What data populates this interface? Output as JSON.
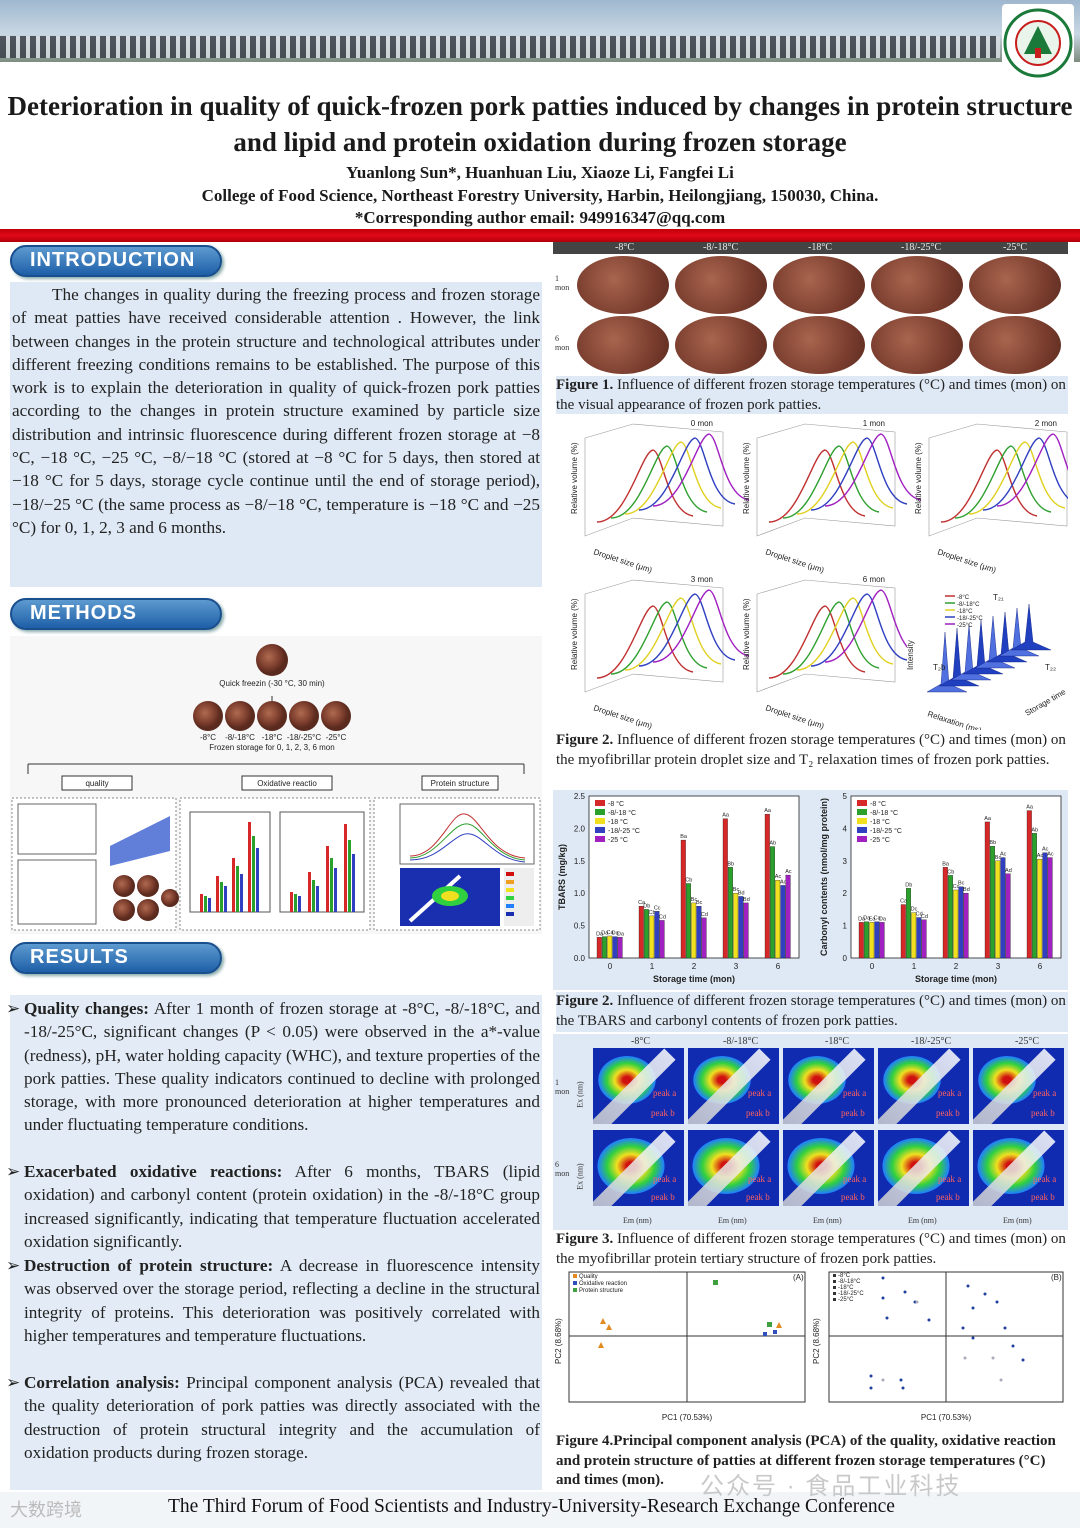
{
  "header": {
    "title": "Deterioration in quality of quick-frozen pork patties induced by changes in protein structure and lipid and protein oxidation during frozen storage",
    "authors": "Yuanlong Sun*, Huanhuan Liu, Xiaoze Li, Fangfei Li",
    "affiliation": "College of Food Science, Northeast Forestry University, Harbin, Heilongjiang, 150030, China.",
    "email": "*Corresponding author email: 949916347@qq.com",
    "logo_text": "NORTHEAST FORESTRY UNIVERSITY"
  },
  "sections": {
    "introduction": "INTRODUCTION",
    "methods": "METHODS",
    "results": "RESULTS"
  },
  "introduction": "The changes in quality during the freezing process and frozen storage of meat patties have received considerable attention . However, the link between changes in the protein structure and technological attributes under different freezing conditions remains to be established. The purpose of this work is to explain the deterioration in quality of quick-frozen pork patties according to the changes in protein structure examined by particle size distribution and intrinsic fluorescence during different frozen storage at −8 °C, −18 °C, −25 °C, −8/−18 °C (stored at −8 °C for 5 days, then stored at −18 °C for 5 days, storage cycle continue until the end of storage period), −18/−25 °C (the same process as −8/−18 °C, temperature is −18 °C and −25 °C) for 0, 1, 2, 3 and 6 months.",
  "methods_fig": {
    "quick_freezing": "Quick freezin (-30 °C, 30 min)",
    "temps": [
      "-8°C",
      "-8/-18°C",
      "-18°C",
      "-18/-25°C",
      "-25°C"
    ],
    "storage": "Frozen storage for 0, 1, 2, 3, 6 mon",
    "boxes": [
      "quality",
      "Oxidative reactio",
      "Protein structure"
    ]
  },
  "results": [
    {
      "head": "Quality changes:",
      "text": " After 1 month of frozen storage at -8°C, -8/-18°C, and -18/-25°C, significant changes (P < 0.05) were observed in the a*-value (redness), pH, water holding capacity (WHC), and texture properties of the pork patties. These quality indicators continued to decline with prolonged storage, with more pronounced deterioration at higher temperatures and under fluctuating temperature conditions."
    },
    {
      "head": "Exacerbated oxidative reactions:",
      "text": " After 6 months, TBARS (lipid oxidation) and carbonyl content (protein oxidation) in the -8/-18°C group increased significantly, indicating that temperature fluctuation accelerated oxidation significantly."
    },
    {
      "head": "Destruction of protein structure:",
      "text": " A decrease in fluorescence intensity was observed over the storage period, reflecting a decline in the structural integrity of proteins. This deterioration was positively correlated with higher temperatures and temperature fluctuations."
    },
    {
      "head": "Correlation analysis:",
      "text": " Principal component analysis (PCA) revealed that the quality deterioration of pork patties was directly associated with the destruction of protein structural integrity and the accumulation of oxidation products during frozen storage."
    }
  ],
  "fig1": {
    "cols": [
      "-8°C",
      "-8/-18°C",
      "-18°C",
      "-18/-25°C",
      "-25°C"
    ],
    "rows": [
      "1 mon",
      "6 mon"
    ],
    "caption_head": "Figure 1.",
    "caption": " Influence of different frozen storage temperatures (°C) and times (mon) on the visual appearance of frozen pork patties."
  },
  "fig2a": {
    "panels": [
      "0 mon",
      "1 mon",
      "2 mon",
      "3 mon",
      "6 mon"
    ],
    "ylabel": "Relative volume (%)",
    "xlabel": "Droplet size (μm)",
    "relax_x": "Relaxation (ms)",
    "relax_y": "Intensity",
    "relax_z": "Storage time",
    "legend": [
      "-8°C",
      "-8/-18°C",
      "-18°C",
      "-18/-25°C",
      "-25°C"
    ],
    "t_labels": [
      "T₂₁",
      "T₂b",
      "T₂₂"
    ],
    "caption_head": "Figure 2.",
    "caption": " Influence of different frozen storage temperatures (°C) and times (mon) on the myofibrillar protein droplet size and T₂ relaxation times of frozen pork patties."
  },
  "chart_data": [
    {
      "type": "bar",
      "title": "",
      "xlabel": "Storage time (mon)",
      "ylabel": "TBARS (mg/kg)",
      "categories": [
        "0",
        "1",
        "2",
        "3",
        "6"
      ],
      "ylim": [
        0,
        2.5
      ],
      "yticks": [
        "0.0",
        "0.5",
        "1.0",
        "1.5",
        "2.0",
        "2.5"
      ],
      "series": [
        {
          "name": "-8 °C",
          "color": "#d62828",
          "values": [
            0.32,
            0.8,
            1.82,
            2.15,
            2.22
          ]
        },
        {
          "name": "-8/-18 °C",
          "color": "#2ca02c",
          "values": [
            0.33,
            0.75,
            1.15,
            1.4,
            1.72
          ]
        },
        {
          "name": "-18 °C",
          "color": "#f0e020",
          "values": [
            0.34,
            0.65,
            0.85,
            1.0,
            1.2
          ]
        },
        {
          "name": "-18/-25 °C",
          "color": "#3040c0",
          "values": [
            0.33,
            0.72,
            0.8,
            0.95,
            1.12
          ]
        },
        {
          "name": "-25 °C",
          "color": "#a020c0",
          "values": [
            0.32,
            0.58,
            0.62,
            0.85,
            1.28
          ]
        }
      ],
      "labels": [
        [
          "Da",
          "Ca",
          "Ba",
          "Aa",
          "Aa"
        ],
        [
          "Da",
          "Db",
          "Cb",
          "Bb",
          "Ab"
        ],
        [
          "Ca",
          "Cb",
          "Bc",
          "Bc",
          "Ac"
        ],
        [
          "Da",
          "Cc",
          "Bc",
          "Bd",
          "Ac"
        ],
        [
          "Da",
          "Cd",
          "Cd",
          "Bd",
          "Ac"
        ]
      ],
      "legend_position": "top-left"
    },
    {
      "type": "bar",
      "title": "",
      "xlabel": "Storage time (mon)",
      "ylabel": "Carbonyl contents (nmol/mg protein)",
      "categories": [
        "0",
        "1",
        "2",
        "3",
        "6"
      ],
      "ylim": [
        0,
        5
      ],
      "yticks": [
        "0",
        "1",
        "2",
        "3",
        "4",
        "5"
      ],
      "series": [
        {
          "name": "-8 °C",
          "color": "#d62828",
          "values": [
            1.1,
            1.65,
            2.8,
            4.2,
            4.55
          ]
        },
        {
          "name": "-8/-18 °C",
          "color": "#2ca02c",
          "values": [
            1.12,
            2.15,
            2.55,
            3.45,
            3.85
          ]
        },
        {
          "name": "-18 °C",
          "color": "#f0e020",
          "values": [
            1.1,
            1.4,
            2.1,
            3.0,
            3.05
          ]
        },
        {
          "name": "-18/-25 °C",
          "color": "#3040c0",
          "values": [
            1.12,
            1.25,
            2.2,
            3.1,
            3.25
          ]
        },
        {
          "name": "-25 °C",
          "color": "#a020c0",
          "values": [
            1.1,
            1.18,
            2.0,
            2.6,
            3.1
          ]
        }
      ],
      "labels": [
        [
          "Da",
          "Ca",
          "Ba",
          "Aa",
          "Aa"
        ],
        [
          "Da",
          "Db",
          "Cb",
          "Bb",
          "Ab"
        ],
        [
          "Ea",
          "Dc",
          "Cc",
          "Bc",
          "Ac"
        ],
        [
          "Ca",
          "Cd",
          "Bc",
          "Ac",
          "Ac"
        ],
        [
          "Da",
          "Cd",
          "Bd",
          "Ad",
          "Ac"
        ]
      ],
      "legend_position": "top-left"
    }
  ],
  "fig2b": {
    "caption_head": "Figure 2.",
    "caption": " Influence of different frozen storage temperatures (°C) and times (mon) on the TBARS and carbonyl contents of frozen pork patties."
  },
  "fig3": {
    "cols": [
      "-8°C",
      "-8/-18°C",
      "-18°C",
      "-18/-25°C",
      "-25°C"
    ],
    "rows": [
      "1 mon",
      "6 mon"
    ],
    "xlabel": "Em (nm)",
    "ylabel": "Ex (nm)",
    "peaks": [
      "peak a",
      "peak b"
    ],
    "caption_head": "Figure 3.",
    "caption": " Influence of different frozen storage temperatures (°C) and times (mon) on the myofibrillar protein tertiary structure of frozen pork patties."
  },
  "fig4": {
    "panelA": "(A)",
    "panelB": "(B)",
    "xlabel": "PC1 (70.53%)",
    "ylabel": "PC2 (8.68%)",
    "legendA": [
      "Quality",
      "Oxidative reaction",
      "Protein structure"
    ],
    "legendB": [
      "-8°C",
      "-8/-18°C",
      "-18°C",
      "-18/-25°C",
      "-25°C"
    ],
    "caption_head": "Figure 4.",
    "caption": "Principal component analysis (PCA) of the quality, oxidative reaction and protein structure of patties at different frozen storage temperatures (°C) and times (mon)."
  },
  "footer": {
    "text": "The Third Forum of Food Scientists and Industry-University-Research Exchange Conference",
    "left_logo": "大数跨境",
    "watermark": "公众号 · 食品工业科技"
  }
}
